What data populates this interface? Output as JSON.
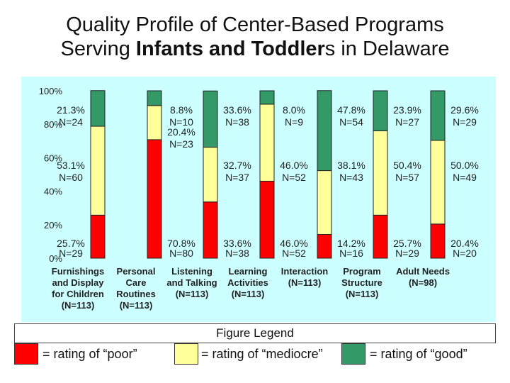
{
  "title": {
    "line1": "Quality Profile of Center-Based Programs",
    "line2_pre": "Serving ",
    "line2_bold": "Infants and Toddler",
    "line2_post": "s in Delaware"
  },
  "legend": {
    "title": "Figure Legend",
    "items": [
      {
        "label": "= rating of “poor”",
        "color": "#ff0000"
      },
      {
        "label": "= rating of “mediocre”",
        "color": "#ffff99"
      },
      {
        "label": "= rating of “good”",
        "color": "#339966"
      }
    ]
  },
  "chart_data": {
    "type": "bar",
    "stacked": true,
    "y_ticks": [
      "0%",
      "20%",
      "40%",
      "60%",
      "80%",
      "100%"
    ],
    "ylim": [
      0,
      100
    ],
    "categories": [
      [
        "Furnishings",
        "and Display",
        "for Children",
        "(N=113)"
      ],
      [
        "Personal",
        "Care",
        "Routines",
        "(N=113)"
      ],
      [
        "Listening",
        "and Talking",
        "(N=113)"
      ],
      [
        "Learning",
        "Activities",
        "(N=113)"
      ],
      [
        "Interaction",
        "(N=113)"
      ],
      [
        "Program",
        "Structure",
        "(N=113)"
      ],
      [
        "Adult Needs",
        "(N=98)"
      ]
    ],
    "series": [
      {
        "name": "poor",
        "color": "#ff0000",
        "values": [
          25.7,
          70.8,
          33.6,
          46.0,
          14.2,
          25.7,
          20.4
        ],
        "labels": [
          [
            "25.7%",
            "N=29"
          ],
          [
            "70.8%",
            "N=80"
          ],
          [
            "33.6%",
            "N=38"
          ],
          [
            "46.0%",
            "N=52"
          ],
          [
            "14.2%",
            "N=16"
          ],
          [
            "25.7%",
            "N=29"
          ],
          [
            "20.4%",
            "N=20"
          ]
        ]
      },
      {
        "name": "mediocre",
        "color": "#ffff99",
        "values": [
          53.1,
          20.4,
          32.7,
          46.0,
          38.1,
          50.4,
          50.0
        ],
        "labels": [
          [
            "53.1%",
            "N=60"
          ],
          [
            "20.4%",
            "N=23"
          ],
          [
            "32.7%",
            "N=37"
          ],
          [
            "46.0%",
            "N=52"
          ],
          [
            "38.1%",
            "N=43"
          ],
          [
            "50.4%",
            "N=57"
          ],
          [
            "50.0%",
            "N=49"
          ]
        ]
      },
      {
        "name": "good",
        "color": "#339966",
        "values": [
          21.3,
          8.8,
          33.6,
          8.0,
          47.8,
          23.9,
          29.6
        ],
        "labels": [
          [
            "21.3%",
            "N=24"
          ],
          [
            "8.8%",
            "N=10"
          ],
          [
            "33.6%",
            "N=38"
          ],
          [
            "8.0%",
            "N=9"
          ],
          [
            "47.8%",
            "N=54"
          ],
          [
            "23.9%",
            "N=27"
          ],
          [
            "29.6%",
            "N=29"
          ]
        ]
      }
    ]
  }
}
